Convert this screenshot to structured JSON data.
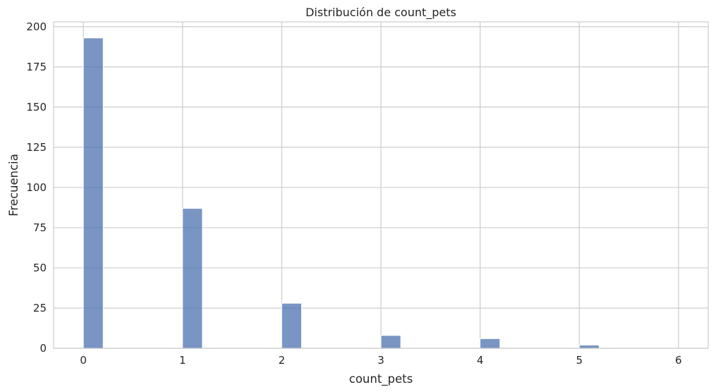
{
  "chart_data": {
    "type": "bar",
    "title": "Distribución de count_pets",
    "xlabel": "count_pets",
    "ylabel": "Frecuencia",
    "x": [
      0,
      1,
      2,
      3,
      4,
      5,
      6
    ],
    "values": [
      193,
      87,
      28,
      8,
      6,
      2,
      0
    ],
    "xlim": [
      -0.3,
      6.3
    ],
    "ylim": [
      0,
      203
    ],
    "xticks": [
      0,
      1,
      2,
      3,
      4,
      5,
      6
    ],
    "yticks": [
      0,
      25,
      50,
      75,
      100,
      125,
      150,
      175,
      200
    ],
    "grid": true,
    "bar_color": "#4c72b0",
    "grid_color": "#cccccc"
  }
}
